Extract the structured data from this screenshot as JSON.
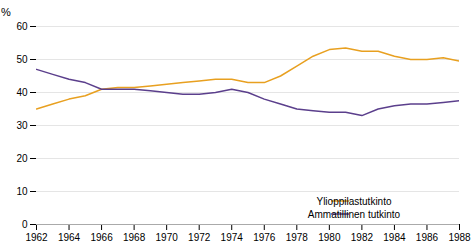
{
  "chart_data": {
    "type": "line",
    "ylabel": "%",
    "x": [
      1962,
      1963,
      1964,
      1965,
      1966,
      1967,
      1968,
      1969,
      1970,
      1971,
      1972,
      1973,
      1974,
      1975,
      1976,
      1977,
      1978,
      1979,
      1980,
      1981,
      1982,
      1983,
      1984,
      1985,
      1986,
      1987,
      1988
    ],
    "series": [
      {
        "name": "Ylioppilastutkinto",
        "color": "#E8A020",
        "values": [
          35,
          36.5,
          38,
          39,
          41,
          41.5,
          41.5,
          42,
          42.5,
          43,
          43.5,
          44,
          44,
          43,
          43,
          45,
          48,
          51,
          53,
          53.5,
          52.5,
          52.5,
          51,
          50,
          50,
          50.5,
          49.5
        ]
      },
      {
        "name": "Ammatillinen tutkinto",
        "color": "#5B3F8C",
        "values": [
          47,
          45.5,
          44,
          43,
          41,
          41,
          41,
          40.5,
          40,
          39.5,
          39.5,
          40,
          41,
          40,
          38,
          36.5,
          35,
          34.5,
          34,
          34,
          33,
          35,
          36,
          36.5,
          36.5,
          37,
          37.5
        ]
      }
    ],
    "xlim": [
      1962,
      1988
    ],
    "xticks": [
      1962,
      1964,
      1966,
      1968,
      1970,
      1972,
      1974,
      1976,
      1978,
      1980,
      1982,
      1984,
      1986,
      1988
    ],
    "ylim": [
      0,
      60
    ],
    "yticks": [
      0,
      10,
      20,
      30,
      40,
      50,
      60
    ],
    "grid": true,
    "legend": "lower right"
  }
}
